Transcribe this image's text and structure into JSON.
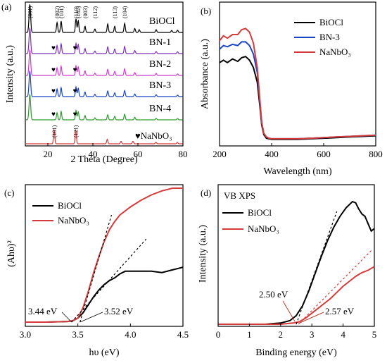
{
  "chart_data": [
    {
      "panel": "(a)",
      "type": "line",
      "title": "",
      "xlabel": "2 Theta (Degree)",
      "ylabel": "Intensity (a.u.)",
      "xlim": [
        10,
        80
      ],
      "xticks": [
        "20",
        "40",
        "60",
        "80"
      ],
      "stacked": true,
      "grid": false,
      "series": [
        {
          "name": "BiOCl",
          "color": "#000000",
          "peaks": [
            [
              12.0,
              1.0
            ],
            [
              24.1,
              0.35
            ],
            [
              25.9,
              0.4
            ],
            [
              32.5,
              0.48
            ],
            [
              33.5,
              0.42
            ],
            [
              36.5,
              0.22
            ],
            [
              40.9,
              0.12
            ],
            [
              46.6,
              0.3
            ],
            [
              49.7,
              0.22
            ],
            [
              54.1,
              0.32
            ],
            [
              58.6,
              0.14
            ],
            [
              60.6,
              0.1
            ],
            [
              68.1,
              0.1
            ],
            [
              75.0,
              0.07
            ],
            [
              77.6,
              0.08
            ]
          ]
        },
        {
          "name": "BN-1",
          "color": "#7e2fb8",
          "peaks": [
            [
              12.0,
              1.0
            ],
            [
              24.1,
              0.32
            ],
            [
              25.9,
              0.38
            ],
            [
              32.5,
              0.4
            ],
            [
              33.5,
              0.36
            ],
            [
              36.5,
              0.2
            ],
            [
              40.9,
              0.1
            ],
            [
              46.6,
              0.26
            ],
            [
              49.7,
              0.18
            ],
            [
              54.1,
              0.28
            ],
            [
              58.6,
              0.12
            ],
            [
              68.1,
              0.08
            ],
            [
              77.6,
              0.07
            ]
          ]
        },
        {
          "name": "BN-2",
          "color": "#d23bd2",
          "peaks": [
            [
              12.0,
              1.0
            ],
            [
              24.1,
              0.3
            ],
            [
              25.9,
              0.36
            ],
            [
              32.5,
              0.38
            ],
            [
              33.5,
              0.34
            ],
            [
              36.5,
              0.18
            ],
            [
              40.9,
              0.09
            ],
            [
              46.6,
              0.24
            ],
            [
              49.7,
              0.16
            ],
            [
              54.1,
              0.26
            ],
            [
              58.6,
              0.11
            ],
            [
              68.1,
              0.08
            ],
            [
              77.6,
              0.06
            ]
          ]
        },
        {
          "name": "BN-3",
          "color": "#1a45c8",
          "peaks": [
            [
              12.0,
              1.0
            ],
            [
              24.1,
              0.3
            ],
            [
              25.9,
              0.35
            ],
            [
              32.5,
              0.38
            ],
            [
              33.5,
              0.33
            ],
            [
              36.5,
              0.18
            ],
            [
              40.9,
              0.09
            ],
            [
              46.6,
              0.22
            ],
            [
              49.7,
              0.15
            ],
            [
              54.1,
              0.24
            ],
            [
              58.6,
              0.1
            ],
            [
              68.1,
              0.07
            ],
            [
              77.6,
              0.06
            ]
          ]
        },
        {
          "name": "BN-4",
          "color": "#2f9a2f",
          "peaks": [
            [
              12.0,
              1.0
            ],
            [
              24.1,
              0.28
            ],
            [
              25.9,
              0.33
            ],
            [
              32.5,
              0.37
            ],
            [
              33.5,
              0.32
            ],
            [
              36.5,
              0.17
            ],
            [
              40.9,
              0.08
            ],
            [
              46.6,
              0.2
            ],
            [
              49.7,
              0.14
            ],
            [
              54.1,
              0.22
            ],
            [
              58.6,
              0.1
            ],
            [
              68.1,
              0.06
            ],
            [
              77.6,
              0.05
            ]
          ]
        },
        {
          "name": "NaNbO3",
          "legend": "NaNbO₃",
          "color": "#d63b3b",
          "peaks": [
            [
              22.8,
              0.55
            ],
            [
              32.4,
              0.55
            ],
            [
              46.4,
              0.18
            ],
            [
              52.5,
              0.1
            ],
            [
              57.8,
              0.1
            ],
            [
              68.0,
              0.06
            ],
            [
              77.5,
              0.05
            ]
          ]
        }
      ],
      "peak_labels": [
        {
          "text": "(001)",
          "x": 12.0
        },
        {
          "text": "(002)",
          "x": 24.1
        },
        {
          "text": "(101)",
          "x": 25.9
        },
        {
          "text": "(110)",
          "x": 32.5
        },
        {
          "text": "(102)",
          "x": 33.5
        },
        {
          "text": "(003)",
          "x": 36.5
        },
        {
          "text": "(112)",
          "x": 40.9
        },
        {
          "text": "(113)",
          "x": 49.7
        },
        {
          "text": "(104)",
          "x": 54.1
        }
      ],
      "nanbo3_labels": [
        {
          "text": "(101)",
          "x": 22.8
        },
        {
          "text": "(121)",
          "x": 32.4
        }
      ],
      "heart_markers": {
        "symbol": "♥",
        "series": [
          "BN-1",
          "BN-2",
          "BN-3",
          "BN-4"
        ],
        "x": [
          22.8,
          32.4
        ]
      },
      "nanbo3_legend": "♥NaNbO₃"
    },
    {
      "panel": "(b)",
      "type": "line",
      "title": "",
      "xlabel": "Wavelength (nm)",
      "ylabel": "Absorbance (a.u.)",
      "xlim": [
        200,
        800
      ],
      "xticks": [
        "200",
        "400",
        "600",
        "800"
      ],
      "legend_position": "top-right",
      "grid": false,
      "series": [
        {
          "name": "BiOCl",
          "color": "#000000",
          "x": [
            200,
            215,
            230,
            250,
            270,
            285,
            300,
            315,
            330,
            345,
            355,
            362,
            370,
            380,
            390,
            400,
            450,
            500,
            550,
            600,
            650,
            700,
            750,
            800
          ],
          "y": [
            0.66,
            0.68,
            0.66,
            0.69,
            0.67,
            0.7,
            0.71,
            0.68,
            0.62,
            0.5,
            0.3,
            0.15,
            0.07,
            0.04,
            0.035,
            0.03,
            0.03,
            0.03,
            0.035,
            0.04,
            0.045,
            0.05,
            0.055,
            0.06
          ]
        },
        {
          "name": "BN-3",
          "color": "#1a45c8",
          "x": [
            200,
            215,
            230,
            250,
            270,
            285,
            300,
            315,
            330,
            345,
            355,
            362,
            370,
            380,
            390,
            400,
            450,
            500,
            550,
            600,
            650,
            700,
            750,
            800
          ],
          "y": [
            0.77,
            0.8,
            0.79,
            0.81,
            0.8,
            0.83,
            0.83,
            0.8,
            0.73,
            0.58,
            0.33,
            0.17,
            0.08,
            0.05,
            0.04,
            0.035,
            0.035,
            0.035,
            0.04,
            0.045,
            0.05,
            0.055,
            0.06,
            0.065
          ]
        },
        {
          "name": "NaNbO3",
          "legend": "NaNbO₃",
          "color": "#d63b3b",
          "x": [
            200,
            215,
            230,
            250,
            270,
            285,
            300,
            315,
            330,
            345,
            355,
            362,
            370,
            380,
            390,
            400,
            450,
            500,
            550,
            600,
            650,
            700,
            750,
            800
          ],
          "y": [
            0.84,
            0.88,
            0.86,
            0.89,
            0.89,
            0.93,
            0.94,
            0.91,
            0.82,
            0.62,
            0.35,
            0.17,
            0.08,
            0.05,
            0.04,
            0.035,
            0.035,
            0.035,
            0.04,
            0.045,
            0.05,
            0.055,
            0.06,
            0.065
          ]
        }
      ]
    },
    {
      "panel": "(c)",
      "type": "line",
      "title": "",
      "xlabel": "hυ (eV)",
      "ylabel": "(Ahυ)²",
      "xlim": [
        3.0,
        4.5
      ],
      "xticks": [
        "3.0",
        "3.5",
        "4.0",
        "4.5"
      ],
      "legend_position": "top-left",
      "grid": false,
      "series": [
        {
          "name": "BiOCl",
          "color": "#000000",
          "x": [
            3.0,
            3.2,
            3.4,
            3.45,
            3.5,
            3.55,
            3.6,
            3.65,
            3.7,
            3.75,
            3.8,
            3.85,
            3.9,
            3.95,
            4.0,
            4.1,
            4.2,
            4.3,
            4.4,
            4.5
          ],
          "y": [
            0.0,
            0.0,
            0.005,
            0.01,
            0.03,
            0.07,
            0.13,
            0.19,
            0.24,
            0.28,
            0.31,
            0.33,
            0.36,
            0.38,
            0.38,
            0.38,
            0.38,
            0.37,
            0.39,
            0.41
          ]
        },
        {
          "name": "NaNbO3",
          "legend": "NaNbO₃",
          "color": "#d63b3b",
          "x": [
            3.0,
            3.2,
            3.4,
            3.45,
            3.5,
            3.55,
            3.6,
            3.65,
            3.7,
            3.75,
            3.8,
            3.85,
            3.9,
            4.0,
            4.1,
            4.2,
            4.3,
            4.4,
            4.5
          ],
          "y": [
            0.0,
            0.0,
            0.005,
            0.01,
            0.03,
            0.11,
            0.23,
            0.37,
            0.49,
            0.6,
            0.69,
            0.75,
            0.8,
            0.86,
            0.91,
            0.95,
            0.98,
            1.0,
            1.0
          ]
        }
      ],
      "tangents": [
        {
          "series": "BiOCl",
          "x": [
            3.44,
            4.15
          ],
          "y": [
            0.0,
            0.62
          ]
        },
        {
          "series": "NaNbO3",
          "x": [
            3.52,
            3.82
          ],
          "y": [
            0.0,
            0.8
          ]
        }
      ],
      "annotations": [
        {
          "text": "3.44 eV",
          "x": 3.44
        },
        {
          "text": "3.52 eV",
          "x": 3.52
        }
      ]
    },
    {
      "panel": "(d)",
      "type": "line",
      "title": "VB XPS",
      "xlabel": "Binding energy (eV)",
      "ylabel": "Intensity (a.u.)",
      "xlim": [
        0,
        5
      ],
      "xticks": [
        "0",
        "1",
        "2",
        "3",
        "4",
        "5"
      ],
      "legend_position": "top-left",
      "grid": false,
      "series": [
        {
          "name": "BiOCl",
          "color": "#000000",
          "x": [
            0,
            0.5,
            1.0,
            1.5,
            2.0,
            2.3,
            2.5,
            2.7,
            2.9,
            3.1,
            3.3,
            3.5,
            3.7,
            3.9,
            4.1,
            4.3,
            4.4,
            4.5,
            4.6,
            4.7,
            4.8,
            4.9,
            5.0
          ],
          "y": [
            0.0,
            0.0,
            0.0,
            0.0,
            0.01,
            0.03,
            0.07,
            0.15,
            0.27,
            0.41,
            0.55,
            0.68,
            0.79,
            0.88,
            0.95,
            1.0,
            0.99,
            0.94,
            0.9,
            0.88,
            0.82,
            0.76,
            0.78
          ]
        },
        {
          "name": "NaNbO3",
          "legend": "NaNbO₃",
          "color": "#d63b3b",
          "x": [
            0,
            0.5,
            1.0,
            1.5,
            2.0,
            2.4,
            2.6,
            2.8,
            3.0,
            3.2,
            3.4,
            3.6,
            3.8,
            4.0,
            4.2,
            4.4,
            4.6,
            4.8,
            5.0
          ],
          "y": [
            0.0,
            0.0,
            0.0,
            0.0,
            0.0,
            0.01,
            0.02,
            0.05,
            0.09,
            0.13,
            0.17,
            0.21,
            0.26,
            0.31,
            0.35,
            0.39,
            0.42,
            0.44,
            0.47
          ]
        }
      ],
      "tangents": [
        {
          "series": "BiOCl",
          "x": [
            2.5,
            3.8
          ],
          "y": [
            0.0,
            0.92
          ]
        },
        {
          "series": "NaNbO3",
          "x": [
            2.57,
            4.9
          ],
          "y": [
            0.0,
            0.6
          ]
        }
      ],
      "annotations": [
        {
          "text": "2.50 eV",
          "x": 2.5
        },
        {
          "text": "2.57 eV",
          "x": 2.57
        }
      ]
    }
  ]
}
